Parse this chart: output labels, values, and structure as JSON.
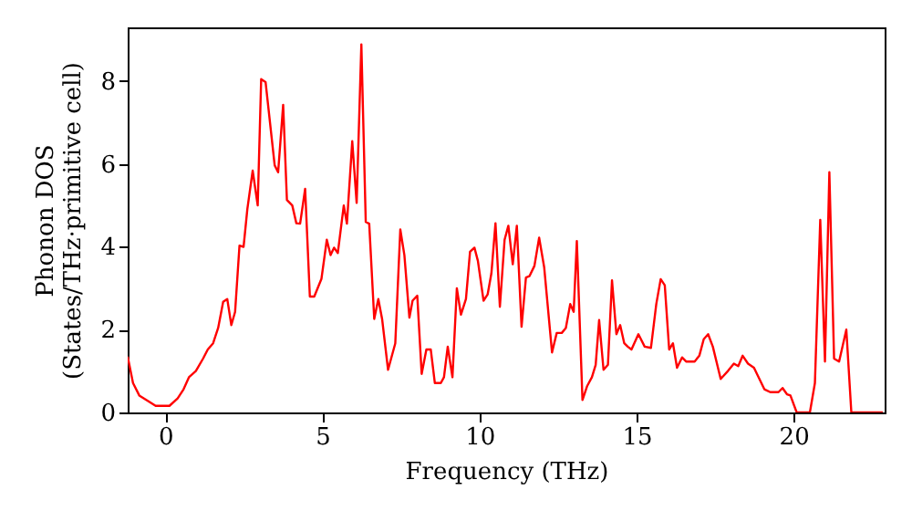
{
  "chart_data": {
    "type": "line",
    "xlabel": "Frequency (THz)",
    "ylabel": "Phonon DOS\n(States/THz·primitive cell)",
    "xlim": [
      -1.2,
      22.9
    ],
    "ylim": [
      0,
      9.3
    ],
    "xticks": [
      0,
      5,
      10,
      15,
      20
    ],
    "yticks": [
      0,
      2,
      4,
      6,
      8
    ],
    "grid": false,
    "marker": "none",
    "line_style": "solid",
    "series": [
      {
        "color": "#ff0000",
        "x": [
          -1.2,
          -1.03,
          -0.83,
          -0.54,
          -0.31,
          0.13,
          0.39,
          0.58,
          0.75,
          0.97,
          1.2,
          1.35,
          1.52,
          1.68,
          1.84,
          1.97,
          2.1,
          2.22,
          2.36,
          2.49,
          2.61,
          2.78,
          2.94,
          3.05,
          3.19,
          3.48,
          3.59,
          3.75,
          3.87,
          4.04,
          4.17,
          4.29,
          4.45,
          4.6,
          4.74,
          4.97,
          5.14,
          5.26,
          5.37,
          5.49,
          5.68,
          5.78,
          5.95,
          6.09,
          6.24,
          6.38,
          6.49,
          6.65,
          6.78,
          6.9,
          7.09,
          7.32,
          7.48,
          7.61,
          7.77,
          7.87,
          8.02,
          8.16,
          8.31,
          8.45,
          8.58,
          8.77,
          8.87,
          8.99,
          9.14,
          9.28,
          9.41,
          9.57,
          9.7,
          9.84,
          9.95,
          10.13,
          10.26,
          10.38,
          10.51,
          10.65,
          10.8,
          10.92,
          11.06,
          11.19,
          11.34,
          11.48,
          11.59,
          11.75,
          11.9,
          12.06,
          12.31,
          12.46,
          12.62,
          12.75,
          12.89,
          13.0,
          13.1,
          13.28,
          13.43,
          13.58,
          13.7,
          13.81,
          13.95,
          14.09,
          14.22,
          14.36,
          14.48,
          14.61,
          14.72,
          14.84,
          15.06,
          15.26,
          15.46,
          15.63,
          15.77,
          15.9,
          16.04,
          16.16,
          16.29,
          16.45,
          16.58,
          16.85,
          17.0,
          17.14,
          17.28,
          17.43,
          17.68,
          17.91,
          18.1,
          18.24,
          18.38,
          18.55,
          18.74,
          19.07,
          19.26,
          19.52,
          19.65,
          19.79,
          19.9,
          20.1,
          20.52,
          20.68,
          20.85,
          21.0,
          21.14,
          21.29,
          21.45,
          21.68,
          21.84,
          22.84
        ],
        "values": [
          1.35,
          0.71,
          0.41,
          0.27,
          0.16,
          0.16,
          0.34,
          0.56,
          0.85,
          1.0,
          1.3,
          1.52,
          1.67,
          2.04,
          2.67,
          2.74,
          2.11,
          2.43,
          4.03,
          4.0,
          4.91,
          5.84,
          5.0,
          8.05,
          7.98,
          5.97,
          5.8,
          7.43,
          5.13,
          5.0,
          4.57,
          4.56,
          5.4,
          2.8,
          2.8,
          3.23,
          4.17,
          3.8,
          3.98,
          3.85,
          5.0,
          4.56,
          6.55,
          5.06,
          8.89,
          4.6,
          4.56,
          2.26,
          2.74,
          2.26,
          1.03,
          1.67,
          4.42,
          3.8,
          2.29,
          2.7,
          2.82,
          0.93,
          1.52,
          1.52,
          0.71,
          0.71,
          0.85,
          1.59,
          0.85,
          3.0,
          2.36,
          2.74,
          3.88,
          3.98,
          3.66,
          2.7,
          2.85,
          3.36,
          4.57,
          2.55,
          4.17,
          4.51,
          3.58,
          4.51,
          2.07,
          3.26,
          3.29,
          3.54,
          4.22,
          3.51,
          1.45,
          1.92,
          1.92,
          2.04,
          2.62,
          2.43,
          4.14,
          0.3,
          0.64,
          0.85,
          1.15,
          2.23,
          1.03,
          1.15,
          3.19,
          1.89,
          2.11,
          1.67,
          1.59,
          1.52,
          1.89,
          1.59,
          1.56,
          2.62,
          3.22,
          3.07,
          1.52,
          1.67,
          1.08,
          1.33,
          1.23,
          1.23,
          1.37,
          1.77,
          1.89,
          1.59,
          0.81,
          1.0,
          1.18,
          1.12,
          1.37,
          1.18,
          1.08,
          0.56,
          0.49,
          0.49,
          0.59,
          0.44,
          0.41,
          0,
          0,
          0.71,
          4.65,
          1.23,
          5.8,
          1.3,
          1.23,
          2.0,
          0,
          0
        ]
      }
    ]
  }
}
